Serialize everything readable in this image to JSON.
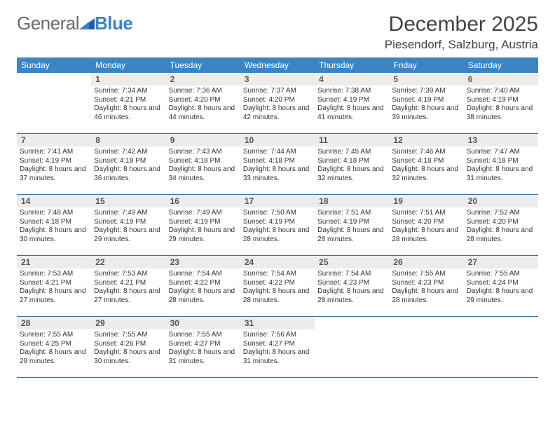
{
  "logo": {
    "text1": "General",
    "text2": "Blue"
  },
  "title": "December 2025",
  "location": "Piesendorf, Salzburg, Austria",
  "colors": {
    "header_bg": "#3d84c4",
    "header_text": "#ffffff",
    "daynum_bg": "#ececec",
    "week_border": "#3d6ea0"
  },
  "dow": [
    "Sunday",
    "Monday",
    "Tuesday",
    "Wednesday",
    "Thursday",
    "Friday",
    "Saturday"
  ],
  "weeks": [
    [
      {
        "n": "",
        "sunrise": "",
        "sunset": "",
        "daylight": ""
      },
      {
        "n": "1",
        "sunrise": "Sunrise: 7:34 AM",
        "sunset": "Sunset: 4:21 PM",
        "daylight": "Daylight: 8 hours and 46 minutes."
      },
      {
        "n": "2",
        "sunrise": "Sunrise: 7:36 AM",
        "sunset": "Sunset: 4:20 PM",
        "daylight": "Daylight: 8 hours and 44 minutes."
      },
      {
        "n": "3",
        "sunrise": "Sunrise: 7:37 AM",
        "sunset": "Sunset: 4:20 PM",
        "daylight": "Daylight: 8 hours and 42 minutes."
      },
      {
        "n": "4",
        "sunrise": "Sunrise: 7:38 AM",
        "sunset": "Sunset: 4:19 PM",
        "daylight": "Daylight: 8 hours and 41 minutes."
      },
      {
        "n": "5",
        "sunrise": "Sunrise: 7:39 AM",
        "sunset": "Sunset: 4:19 PM",
        "daylight": "Daylight: 8 hours and 39 minutes."
      },
      {
        "n": "6",
        "sunrise": "Sunrise: 7:40 AM",
        "sunset": "Sunset: 4:19 PM",
        "daylight": "Daylight: 8 hours and 38 minutes."
      }
    ],
    [
      {
        "n": "7",
        "sunrise": "Sunrise: 7:41 AM",
        "sunset": "Sunset: 4:19 PM",
        "daylight": "Daylight: 8 hours and 37 minutes."
      },
      {
        "n": "8",
        "sunrise": "Sunrise: 7:42 AM",
        "sunset": "Sunset: 4:18 PM",
        "daylight": "Daylight: 8 hours and 36 minutes."
      },
      {
        "n": "9",
        "sunrise": "Sunrise: 7:43 AM",
        "sunset": "Sunset: 4:18 PM",
        "daylight": "Daylight: 8 hours and 34 minutes."
      },
      {
        "n": "10",
        "sunrise": "Sunrise: 7:44 AM",
        "sunset": "Sunset: 4:18 PM",
        "daylight": "Daylight: 8 hours and 33 minutes."
      },
      {
        "n": "11",
        "sunrise": "Sunrise: 7:45 AM",
        "sunset": "Sunset: 4:18 PM",
        "daylight": "Daylight: 8 hours and 32 minutes."
      },
      {
        "n": "12",
        "sunrise": "Sunrise: 7:46 AM",
        "sunset": "Sunset: 4:18 PM",
        "daylight": "Daylight: 8 hours and 32 minutes."
      },
      {
        "n": "13",
        "sunrise": "Sunrise: 7:47 AM",
        "sunset": "Sunset: 4:18 PM",
        "daylight": "Daylight: 8 hours and 31 minutes."
      }
    ],
    [
      {
        "n": "14",
        "sunrise": "Sunrise: 7:48 AM",
        "sunset": "Sunset: 4:18 PM",
        "daylight": "Daylight: 8 hours and 30 minutes."
      },
      {
        "n": "15",
        "sunrise": "Sunrise: 7:49 AM",
        "sunset": "Sunset: 4:19 PM",
        "daylight": "Daylight: 8 hours and 29 minutes."
      },
      {
        "n": "16",
        "sunrise": "Sunrise: 7:49 AM",
        "sunset": "Sunset: 4:19 PM",
        "daylight": "Daylight: 8 hours and 29 minutes."
      },
      {
        "n": "17",
        "sunrise": "Sunrise: 7:50 AM",
        "sunset": "Sunset: 4:19 PM",
        "daylight": "Daylight: 8 hours and 28 minutes."
      },
      {
        "n": "18",
        "sunrise": "Sunrise: 7:51 AM",
        "sunset": "Sunset: 4:19 PM",
        "daylight": "Daylight: 8 hours and 28 minutes."
      },
      {
        "n": "19",
        "sunrise": "Sunrise: 7:51 AM",
        "sunset": "Sunset: 4:20 PM",
        "daylight": "Daylight: 8 hours and 28 minutes."
      },
      {
        "n": "20",
        "sunrise": "Sunrise: 7:52 AM",
        "sunset": "Sunset: 4:20 PM",
        "daylight": "Daylight: 8 hours and 28 minutes."
      }
    ],
    [
      {
        "n": "21",
        "sunrise": "Sunrise: 7:53 AM",
        "sunset": "Sunset: 4:21 PM",
        "daylight": "Daylight: 8 hours and 27 minutes."
      },
      {
        "n": "22",
        "sunrise": "Sunrise: 7:53 AM",
        "sunset": "Sunset: 4:21 PM",
        "daylight": "Daylight: 8 hours and 27 minutes."
      },
      {
        "n": "23",
        "sunrise": "Sunrise: 7:54 AM",
        "sunset": "Sunset: 4:22 PM",
        "daylight": "Daylight: 8 hours and 28 minutes."
      },
      {
        "n": "24",
        "sunrise": "Sunrise: 7:54 AM",
        "sunset": "Sunset: 4:22 PM",
        "daylight": "Daylight: 8 hours and 28 minutes."
      },
      {
        "n": "25",
        "sunrise": "Sunrise: 7:54 AM",
        "sunset": "Sunset: 4:23 PM",
        "daylight": "Daylight: 8 hours and 28 minutes."
      },
      {
        "n": "26",
        "sunrise": "Sunrise: 7:55 AM",
        "sunset": "Sunset: 4:23 PM",
        "daylight": "Daylight: 8 hours and 28 minutes."
      },
      {
        "n": "27",
        "sunrise": "Sunrise: 7:55 AM",
        "sunset": "Sunset: 4:24 PM",
        "daylight": "Daylight: 8 hours and 29 minutes."
      }
    ],
    [
      {
        "n": "28",
        "sunrise": "Sunrise: 7:55 AM",
        "sunset": "Sunset: 4:25 PM",
        "daylight": "Daylight: 8 hours and 29 minutes."
      },
      {
        "n": "29",
        "sunrise": "Sunrise: 7:55 AM",
        "sunset": "Sunset: 4:26 PM",
        "daylight": "Daylight: 8 hours and 30 minutes."
      },
      {
        "n": "30",
        "sunrise": "Sunrise: 7:55 AM",
        "sunset": "Sunset: 4:27 PM",
        "daylight": "Daylight: 8 hours and 31 minutes."
      },
      {
        "n": "31",
        "sunrise": "Sunrise: 7:56 AM",
        "sunset": "Sunset: 4:27 PM",
        "daylight": "Daylight: 8 hours and 31 minutes."
      },
      {
        "n": "",
        "sunrise": "",
        "sunset": "",
        "daylight": ""
      },
      {
        "n": "",
        "sunrise": "",
        "sunset": "",
        "daylight": ""
      },
      {
        "n": "",
        "sunrise": "",
        "sunset": "",
        "daylight": ""
      }
    ]
  ]
}
